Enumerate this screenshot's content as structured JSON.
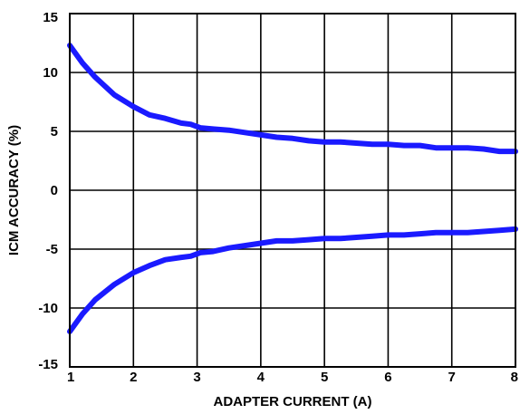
{
  "chart_data": {
    "type": "line",
    "xlabel": "ADAPTER CURRENT (A)",
    "ylabel": "ICM ACCURACY (%)",
    "xlim": [
      1,
      8
    ],
    "ylim": [
      -15,
      15
    ],
    "xticks": [
      "1",
      "2",
      "3",
      "4",
      "5",
      "6",
      "7",
      "8"
    ],
    "yticks": [
      "15",
      "10",
      "5",
      "0",
      "-5",
      "-10",
      "-15"
    ],
    "grid": true,
    "line_color": "#1a1aff",
    "series": [
      {
        "x": [
          1.0,
          1.2,
          1.4,
          1.7,
          2.0,
          2.25,
          2.5,
          2.75,
          2.9,
          3.05,
          3.25,
          3.5,
          3.75,
          4.0,
          4.25,
          4.5,
          4.75,
          5.0,
          5.25,
          5.5,
          5.75,
          6.0,
          6.25,
          6.5,
          6.75,
          7.0,
          7.25,
          7.5,
          7.75,
          8.0
        ],
        "y": [
          12.3,
          10.8,
          9.6,
          8.1,
          7.1,
          6.4,
          6.1,
          5.7,
          5.6,
          5.3,
          5.2,
          5.1,
          4.9,
          4.7,
          4.5,
          4.4,
          4.2,
          4.1,
          4.1,
          4.0,
          3.9,
          3.9,
          3.8,
          3.8,
          3.6,
          3.6,
          3.6,
          3.5,
          3.3,
          3.3
        ]
      },
      {
        "x": [
          1.0,
          1.2,
          1.4,
          1.7,
          2.0,
          2.25,
          2.5,
          2.75,
          2.9,
          3.05,
          3.25,
          3.5,
          3.75,
          4.0,
          4.25,
          4.5,
          4.75,
          5.0,
          5.25,
          5.5,
          5.75,
          6.0,
          6.25,
          6.5,
          6.75,
          7.0,
          7.25,
          7.5,
          7.75,
          8.0
        ],
        "y": [
          -12.0,
          -10.5,
          -9.3,
          -8.0,
          -7.0,
          -6.4,
          -5.9,
          -5.7,
          -5.6,
          -5.3,
          -5.2,
          -4.9,
          -4.7,
          -4.5,
          -4.3,
          -4.3,
          -4.2,
          -4.1,
          -4.1,
          -4.0,
          -3.9,
          -3.8,
          -3.8,
          -3.7,
          -3.6,
          -3.6,
          -3.6,
          -3.5,
          -3.4,
          -3.3
        ]
      }
    ]
  }
}
